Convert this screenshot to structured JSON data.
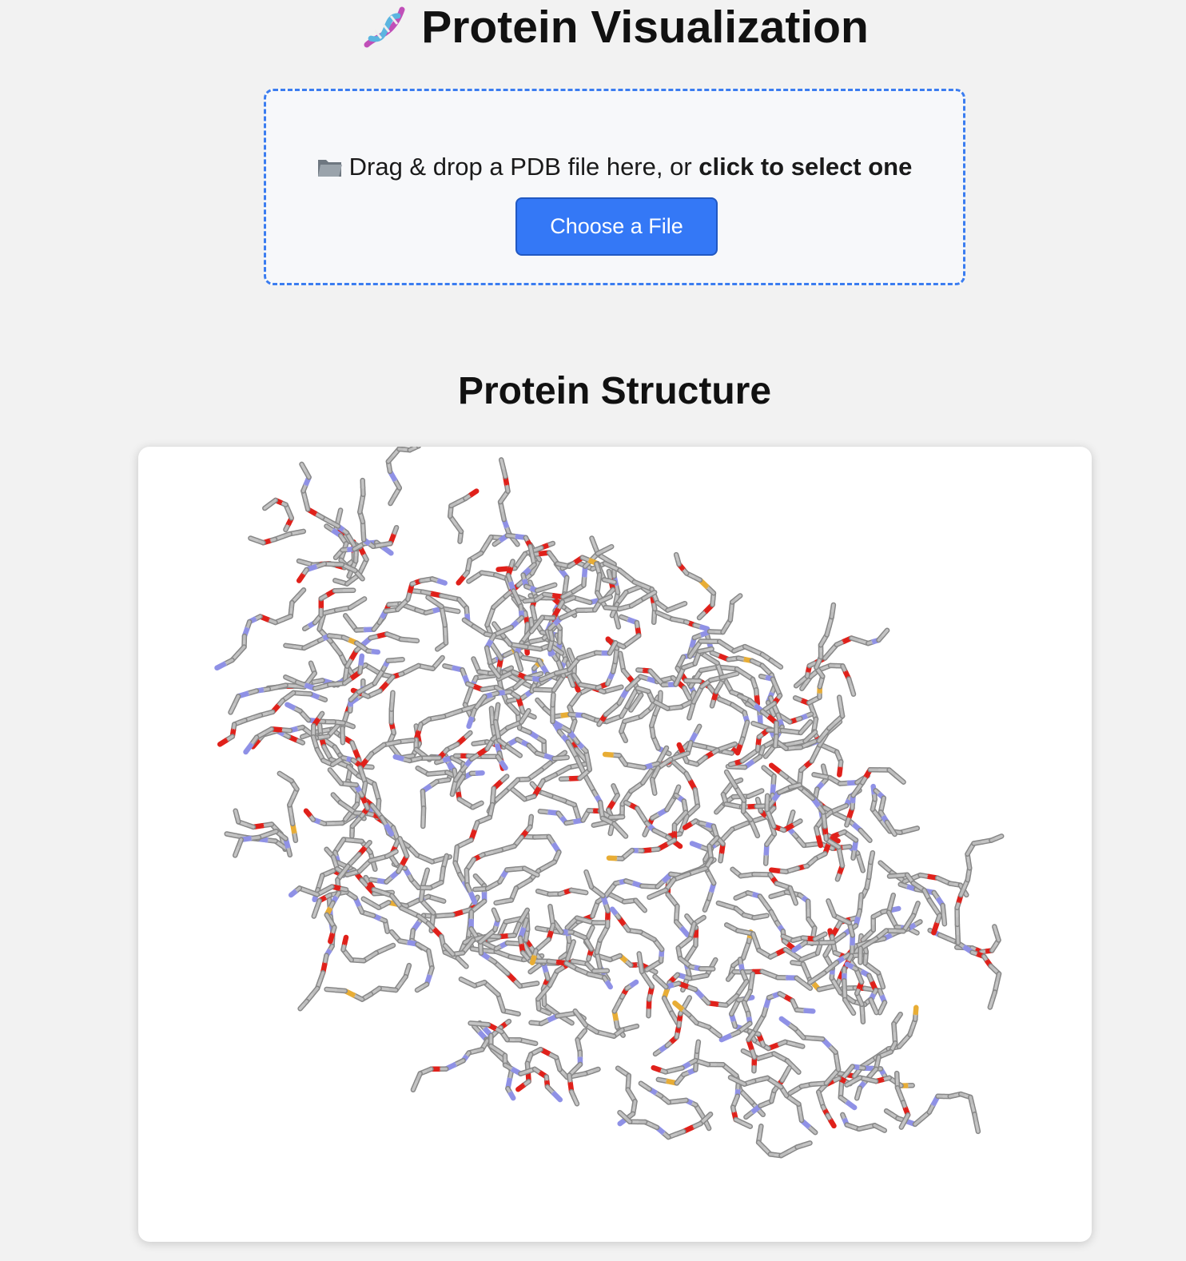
{
  "header": {
    "title": "Protein Visualization",
    "icon": "dna-icon"
  },
  "upload": {
    "prompt_plain": "Drag & drop a PDB file here, or",
    "prompt_bold": "click to select one",
    "button_label": "Choose a File",
    "icon": "folder-icon",
    "accent_color": "#3b7df0"
  },
  "viewer": {
    "title": "Protein Structure",
    "representation": "stick",
    "atom_colors": {
      "carbon": "#a9a9a9",
      "nitrogen": "#8f91e6",
      "oxygen": "#e0201a",
      "sulfur": "#e8ad35"
    }
  }
}
